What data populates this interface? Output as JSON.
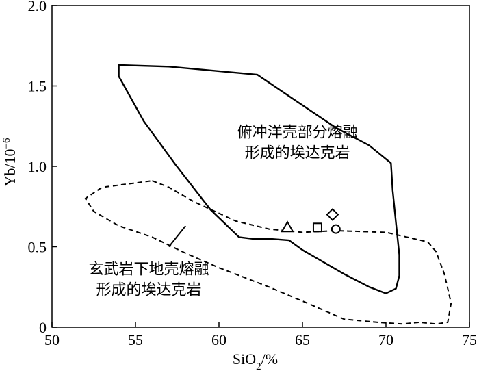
{
  "chart_data": {
    "type": "scatter",
    "title": "",
    "xlabel": "SiO",
    "xlabel_sub": "2",
    "xlabel_unit": "/%",
    "ylabel": "Yb/10",
    "ylabel_sup": "−6",
    "xlim": [
      50,
      75
    ],
    "ylim": [
      0,
      2.0
    ],
    "x_ticks": [
      50,
      55,
      60,
      65,
      70,
      75
    ],
    "y_ticks": [
      0,
      0.5,
      1.0,
      1.5,
      2.0
    ],
    "x_tick_labels": [
      "50",
      "55",
      "60",
      "65",
      "70",
      "75"
    ],
    "y_tick_labels": [
      "0",
      "0.5",
      "1.0",
      "1.5",
      "2.0"
    ],
    "grid": false,
    "regions": [
      {
        "name_lines": [
          "俯冲洋壳部分熔融",
          "形成的埃达克岩"
        ],
        "line_style": "solid",
        "label_anchor": [
          64.7,
          1.18
        ],
        "polygon": [
          [
            54.0,
            1.63
          ],
          [
            57.0,
            1.62
          ],
          [
            62.3,
            1.57
          ],
          [
            65.0,
            1.38
          ],
          [
            67.0,
            1.24
          ],
          [
            69.0,
            1.13
          ],
          [
            70.3,
            1.02
          ],
          [
            70.4,
            0.85
          ],
          [
            70.6,
            0.65
          ],
          [
            70.8,
            0.45
          ],
          [
            70.8,
            0.32
          ],
          [
            70.6,
            0.24
          ],
          [
            70.0,
            0.21
          ],
          [
            69.0,
            0.25
          ],
          [
            67.5,
            0.33
          ],
          [
            65.0,
            0.48
          ],
          [
            64.2,
            0.54
          ],
          [
            63.0,
            0.55
          ],
          [
            62.0,
            0.55
          ],
          [
            61.2,
            0.56
          ],
          [
            59.5,
            0.73
          ],
          [
            57.4,
            1.01
          ],
          [
            55.5,
            1.28
          ],
          [
            54.0,
            1.56
          ],
          [
            54.0,
            1.63
          ]
        ]
      },
      {
        "name_lines": [
          "玄武岩下地壳熔融",
          "形成的埃达克岩"
        ],
        "line_style": "dashed",
        "label_anchor": [
          55.8,
          0.33
        ],
        "polygon": [
          [
            56.0,
            0.91
          ],
          [
            57.0,
            0.87
          ],
          [
            58.5,
            0.78
          ],
          [
            61.0,
            0.66
          ],
          [
            63.0,
            0.61
          ],
          [
            65.0,
            0.59
          ],
          [
            67.0,
            0.6
          ],
          [
            70.0,
            0.59
          ],
          [
            72.5,
            0.53
          ],
          [
            73.0,
            0.47
          ],
          [
            73.5,
            0.33
          ],
          [
            73.9,
            0.15
          ],
          [
            73.7,
            0.03
          ],
          [
            73.0,
            0.02
          ],
          [
            72.0,
            0.03
          ],
          [
            71.0,
            0.02
          ],
          [
            69.5,
            0.03
          ],
          [
            67.5,
            0.05
          ],
          [
            65.5,
            0.14
          ],
          [
            63.0,
            0.25
          ],
          [
            60.0,
            0.37
          ],
          [
            58.0,
            0.46
          ],
          [
            56.0,
            0.56
          ],
          [
            54.0,
            0.63
          ],
          [
            52.5,
            0.72
          ],
          [
            52.0,
            0.8
          ],
          [
            53.0,
            0.87
          ],
          [
            54.5,
            0.89
          ],
          [
            56.0,
            0.91
          ]
        ]
      }
    ],
    "leader_line": [
      [
        57.0,
        0.5
      ],
      [
        58.0,
        0.63
      ]
    ],
    "points": [
      {
        "marker": "triangle",
        "x": 64.1,
        "y": 0.62
      },
      {
        "marker": "square",
        "x": 65.9,
        "y": 0.62
      },
      {
        "marker": "circle",
        "x": 67.0,
        "y": 0.61
      },
      {
        "marker": "diamond",
        "x": 66.8,
        "y": 0.7
      }
    ]
  }
}
